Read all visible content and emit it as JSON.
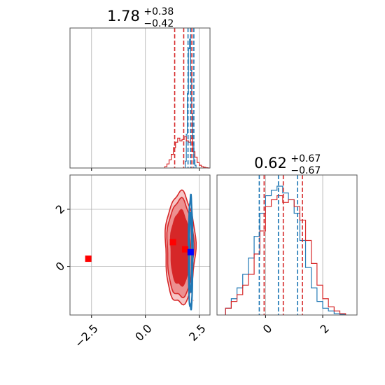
{
  "chart_data": {
    "type": "corner",
    "colors": {
      "red": "#d62728",
      "blue": "#1f77b4",
      "grid": "#b0b0b0",
      "marker_red": "#ff0000",
      "marker_blue": "#0000ff"
    },
    "panels": [
      {
        "name": "param1-marginal",
        "type": "histogram",
        "title": {
          "median": "1.78",
          "upper": "+0.38",
          "lower": "−0.42"
        },
        "xlim": [
          -3.5,
          3.0
        ],
        "quantiles": {
          "red": [
            1.36,
            1.78,
            2.16
          ],
          "blue": [
            1.98,
            2.1,
            2.25
          ]
        },
        "red_hist": {
          "bins": [
            0.9,
            1.0,
            1.1,
            1.2,
            1.3,
            1.4,
            1.5,
            1.6,
            1.7,
            1.8,
            1.9,
            2.0,
            2.1,
            2.2,
            2.3,
            2.4,
            2.5,
            2.6,
            2.7,
            2.8,
            2.9,
            3.0
          ],
          "counts": [
            0.01,
            0.03,
            0.06,
            0.1,
            0.15,
            0.19,
            0.22,
            0.2,
            0.21,
            0.23,
            0.2,
            0.19,
            0.22,
            0.12,
            0.08,
            0.04,
            0.02,
            0.01,
            0.005,
            0.002,
            0
          ]
        },
        "blue_hist": {
          "bins": [
            1.85,
            1.9,
            1.95,
            2.0,
            2.05,
            2.1,
            2.15,
            2.2,
            2.25,
            2.3,
            2.35
          ],
          "counts": [
            0.05,
            0.25,
            0.55,
            0.88,
            0.95,
            0.72,
            0.4,
            0.18,
            0.06,
            0.02
          ]
        }
      },
      {
        "name": "param2-marginal",
        "type": "histogram",
        "title": {
          "median": "0.62",
          "upper": "+0.67",
          "lower": "−0.67"
        },
        "xlim": [
          -1.7,
          3.2
        ],
        "xticks": [
          0,
          2
        ],
        "quantiles": {
          "red": [
            -0.05,
            0.62,
            1.29
          ],
          "blue": [
            -0.22,
            0.45,
            1.12
          ]
        },
        "red_hist": {
          "bins": [
            -1.4,
            -1.2,
            -1.0,
            -0.8,
            -0.6,
            -0.4,
            -0.2,
            0.0,
            0.2,
            0.4,
            0.6,
            0.8,
            1.0,
            1.2,
            1.4,
            1.6,
            1.8,
            2.0,
            2.2,
            2.4,
            2.6,
            2.8
          ],
          "counts": [
            0.05,
            0.1,
            0.15,
            0.22,
            0.3,
            0.45,
            0.62,
            0.8,
            0.85,
            0.88,
            0.83,
            0.85,
            0.8,
            0.7,
            0.55,
            0.38,
            0.22,
            0.12,
            0.06,
            0.03,
            0.01
          ]
        },
        "blue_hist": {
          "bins": [
            -1.4,
            -1.2,
            -1.0,
            -0.8,
            -0.6,
            -0.4,
            -0.2,
            0.0,
            0.2,
            0.4,
            0.6,
            0.8,
            1.0,
            1.2,
            1.4,
            1.6,
            1.8,
            2.0,
            2.2,
            2.4,
            2.6,
            2.8
          ],
          "counts": [
            0.05,
            0.12,
            0.2,
            0.3,
            0.42,
            0.58,
            0.75,
            0.88,
            0.92,
            0.95,
            0.9,
            0.85,
            0.75,
            0.55,
            0.35,
            0.2,
            0.1,
            0.05,
            0.03,
            0.01,
            0.005
          ]
        }
      },
      {
        "name": "joint-2d",
        "type": "contour",
        "xlim": [
          -3.5,
          3.0
        ],
        "ylim": [
          -1.7,
          3.2
        ],
        "xticks": [
          -2.5,
          0.0,
          2.5
        ],
        "yticks": [
          0,
          2
        ],
        "red_contours": [
          {
            "cx": 1.62,
            "cy": 0.62,
            "rx": 0.7,
            "ry": 1.95,
            "fill": "#f6c6c6"
          },
          {
            "cx": 1.62,
            "cy": 0.62,
            "rx": 0.62,
            "ry": 1.7,
            "fill": "#ed9090"
          },
          {
            "cx": 1.62,
            "cy": 0.62,
            "rx": 0.45,
            "ry": 1.3,
            "fill": "#d62728"
          }
        ],
        "blue_contours": [
          {
            "cx": 2.1,
            "cy": 0.45,
            "rx": 0.1,
            "ry": 1.95
          },
          {
            "cx": 2.1,
            "cy": 0.45,
            "rx": 0.06,
            "ry": 1.35
          }
        ],
        "markers": [
          {
            "x": -2.65,
            "y": 0.27,
            "color": "red"
          },
          {
            "x": 1.28,
            "y": 0.85,
            "color": "red"
          },
          {
            "x": 1.85,
            "y": 0.6,
            "color": "red"
          },
          {
            "x": 2.1,
            "y": 0.5,
            "color": "blue"
          }
        ]
      }
    ],
    "tick_labels": {
      "joint_x": [
        "−2.5",
        "0.0",
        "2.5"
      ],
      "joint_y": [
        "0",
        "2"
      ],
      "marg2_x": [
        "0",
        "2"
      ]
    }
  }
}
